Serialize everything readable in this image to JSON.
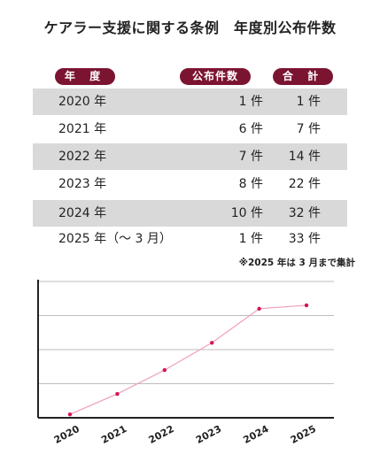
{
  "title": "ケアラー支援に関する条例　年度別公布件数",
  "table": {
    "headers": {
      "year": "年 度",
      "count": "公布件数",
      "total": "合 計"
    },
    "rows": [
      {
        "year": "2020 年",
        "count": "1 件",
        "total": "1 件"
      },
      {
        "year": "2021 年",
        "count": "6 件",
        "total": "7 件"
      },
      {
        "year": "2022 年",
        "count": "7 件",
        "total": "14 件"
      },
      {
        "year": "2023 年",
        "count": "8 件",
        "total": "22 件"
      },
      {
        "year": "2024 年",
        "count": "10 件",
        "total": "32 件"
      },
      {
        "year": "2025 年（〜 3 月）",
        "count": "1 件",
        "total": "33 件"
      }
    ],
    "note": "※2025 年は 3 月まで集計"
  },
  "colors": {
    "header_pill": "#7b1431",
    "row_shade": "#d9d9d9",
    "line": "#f0a0b4",
    "point": "#d4145a"
  },
  "chart_data": {
    "type": "line",
    "x": [
      "2020",
      "2021",
      "2022",
      "2023",
      "2024",
      "2025"
    ],
    "series": [
      {
        "values": [
          1,
          7,
          14,
          22,
          32,
          33
        ]
      }
    ],
    "ylim": [
      0,
      40
    ],
    "grid": true,
    "title": "",
    "xlabel": "",
    "ylabel": ""
  }
}
